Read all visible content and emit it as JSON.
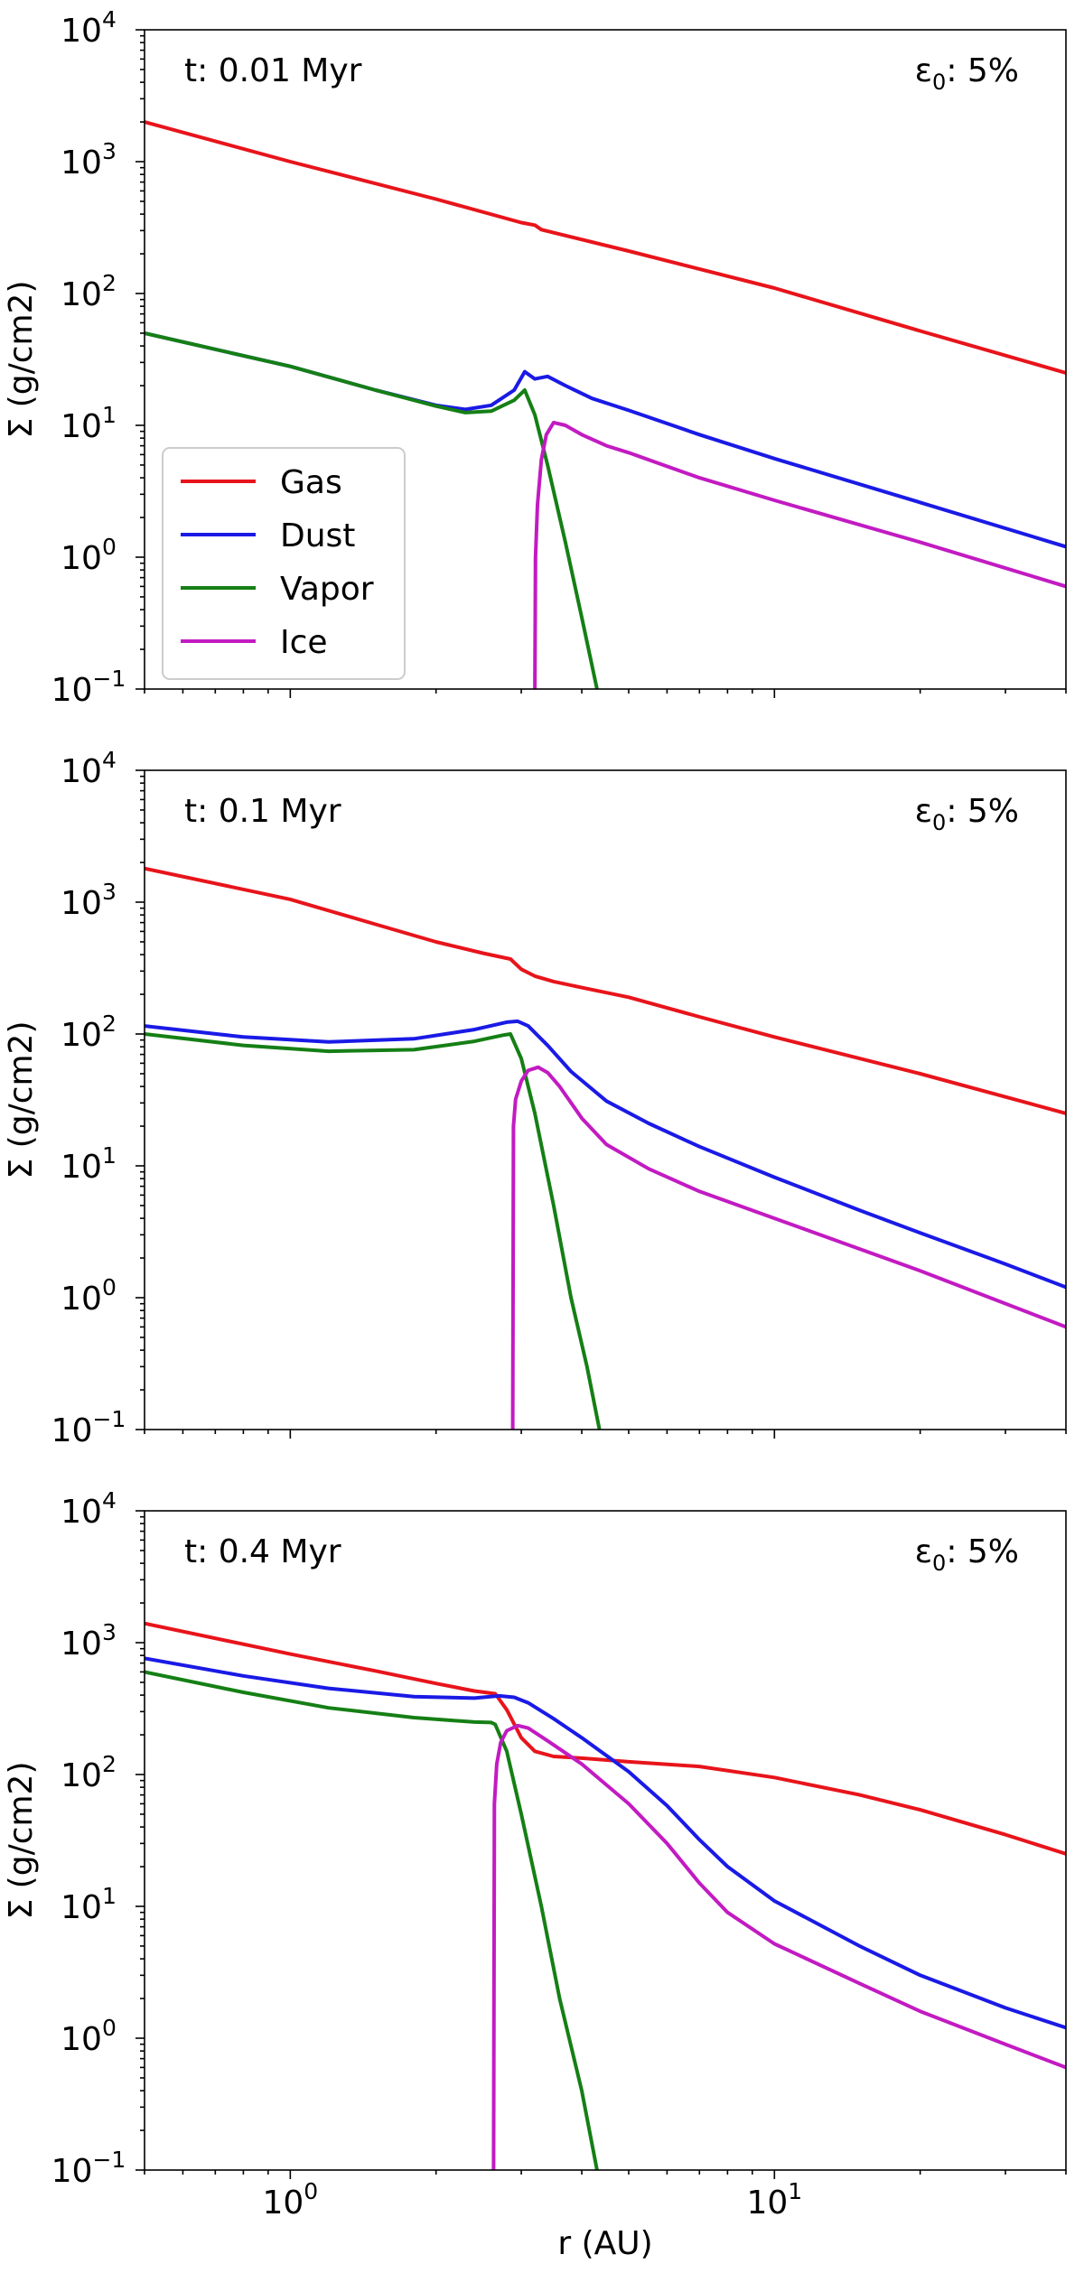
{
  "figure": {
    "xlabel": "r (AU)",
    "ylabel": "Σ (g/cm2)"
  },
  "legend": {
    "entries": [
      {
        "label": "Gas",
        "color": "#e8141b"
      },
      {
        "label": "Dust",
        "color": "#1a1ae6"
      },
      {
        "label": "Vapor",
        "color": "#157f15"
      },
      {
        "label": "Ice",
        "color": "#c21bc2"
      }
    ]
  },
  "chart_data": [
    {
      "type": "line",
      "title": "t: 0.01 Myr",
      "annotation": "ε0: 5%",
      "xscale": "log",
      "yscale": "log",
      "xlim": [
        0.5,
        40
      ],
      "ylim": [
        0.1,
        10000
      ],
      "xticks": [
        "10^0",
        "10^1"
      ],
      "yticks": [
        "10^-1",
        "10^0",
        "10^1",
        "10^2",
        "10^3",
        "10^4"
      ],
      "ylabel": "Σ (g/cm2)",
      "xlabel": "",
      "legend_location": "center-left",
      "series": [
        {
          "name": "Gas",
          "color": "#e8141b",
          "x": [
            0.5,
            1,
            2,
            3,
            3.2,
            3.3,
            5,
            10,
            20,
            40
          ],
          "y": [
            2000,
            1000,
            520,
            345,
            330,
            305,
            210,
            110,
            52,
            25
          ]
        },
        {
          "name": "Dust",
          "color": "#1a1ae6",
          "x": [
            0.5,
            1,
            1.5,
            2,
            2.3,
            2.6,
            2.9,
            3.0,
            3.05,
            3.2,
            3.4,
            3.7,
            4.2,
            5,
            7,
            10,
            20,
            40
          ],
          "y": [
            50,
            28,
            18.5,
            14.2,
            13.2,
            14.2,
            18.5,
            23,
            25.5,
            22.5,
            23.5,
            20,
            16,
            13,
            8.5,
            5.6,
            2.6,
            1.2
          ]
        },
        {
          "name": "Vapor",
          "color": "#157f15",
          "x": [
            0.5,
            1,
            1.5,
            2,
            2.3,
            2.6,
            2.9,
            3.05,
            3.2,
            3.4,
            3.7,
            4.0,
            4.3
          ],
          "y": [
            50,
            28,
            18.5,
            14,
            12.5,
            12.8,
            15.5,
            18.5,
            12,
            5,
            1.3,
            0.35,
            0.1
          ]
        },
        {
          "name": "Ice",
          "color": "#c21bc2",
          "x": [
            3.2,
            3.21,
            3.24,
            3.3,
            3.38,
            3.5,
            3.7,
            4.0,
            4.5,
            5,
            7,
            10,
            20,
            40
          ],
          "y": [
            0.1,
            1,
            2.5,
            5.5,
            8.5,
            10.5,
            10,
            8.5,
            7,
            6.2,
            4,
            2.7,
            1.3,
            0.6
          ]
        }
      ]
    },
    {
      "type": "line",
      "title": "t: 0.1 Myr",
      "annotation": "ε0: 5%",
      "xscale": "log",
      "yscale": "log",
      "xlim": [
        0.5,
        40
      ],
      "ylim": [
        0.1,
        10000
      ],
      "xticks": [
        "10^0",
        "10^1"
      ],
      "yticks": [
        "10^-1",
        "10^0",
        "10^1",
        "10^2",
        "10^3",
        "10^4"
      ],
      "ylabel": "Σ (g/cm2)",
      "xlabel": "",
      "series": [
        {
          "name": "Gas",
          "color": "#e8141b",
          "x": [
            0.5,
            1,
            1.5,
            2,
            2.5,
            2.85,
            3.0,
            3.2,
            3.5,
            4,
            5,
            7,
            10,
            20,
            40
          ],
          "y": [
            1800,
            1050,
            680,
            500,
            410,
            370,
            310,
            275,
            250,
            225,
            190,
            135,
            95,
            50,
            25
          ]
        },
        {
          "name": "Dust",
          "color": "#1a1ae6",
          "x": [
            0.5,
            0.8,
            1.2,
            1.8,
            2.4,
            2.8,
            2.95,
            3.1,
            3.4,
            3.8,
            4.5,
            5.5,
            7,
            10,
            15,
            20,
            30,
            40
          ],
          "y": [
            115,
            95,
            87,
            92,
            108,
            123,
            125,
            115,
            82,
            52,
            31,
            21,
            14,
            8.2,
            4.6,
            3.1,
            1.8,
            1.2
          ]
        },
        {
          "name": "Vapor",
          "color": "#157f15",
          "x": [
            0.5,
            0.8,
            1.2,
            1.8,
            2.4,
            2.75,
            2.85,
            3.0,
            3.2,
            3.5,
            3.8,
            4.1,
            4.35
          ],
          "y": [
            100,
            82,
            74,
            76,
            88,
            98,
            100,
            65,
            25,
            5,
            1.0,
            0.3,
            0.1
          ]
        },
        {
          "name": "Ice",
          "color": "#c21bc2",
          "x": [
            2.88,
            2.89,
            2.92,
            3.0,
            3.1,
            3.25,
            3.4,
            3.6,
            4,
            4.5,
            5.5,
            7,
            10,
            20,
            40
          ],
          "y": [
            0.1,
            20,
            32,
            44,
            53,
            56,
            51,
            40,
            23,
            14.5,
            9.5,
            6.4,
            4.0,
            1.6,
            0.6
          ]
        }
      ]
    },
    {
      "type": "line",
      "title": "t: 0.4 Myr",
      "annotation": "ε0: 5%",
      "xscale": "log",
      "yscale": "log",
      "xlim": [
        0.5,
        40
      ],
      "ylim": [
        0.1,
        10000
      ],
      "xticks": [
        "10^0",
        "10^1"
      ],
      "yticks": [
        "10^-1",
        "10^0",
        "10^1",
        "10^2",
        "10^3",
        "10^4"
      ],
      "ylabel": "Σ (g/cm2)",
      "xlabel": "r (AU)",
      "series": [
        {
          "name": "Gas",
          "color": "#e8141b",
          "x": [
            0.5,
            1,
            1.5,
            2,
            2.4,
            2.65,
            2.8,
            3.0,
            3.2,
            3.5,
            4,
            5,
            7,
            10,
            15,
            20,
            30,
            40
          ],
          "y": [
            1400,
            820,
            610,
            490,
            430,
            410,
            310,
            190,
            150,
            137,
            133,
            125,
            115,
            95,
            70,
            54,
            35,
            25
          ]
        },
        {
          "name": "Dust",
          "color": "#1a1ae6",
          "x": [
            0.5,
            0.8,
            1.2,
            1.8,
            2.4,
            2.7,
            2.9,
            3.1,
            3.5,
            4,
            5,
            6,
            7,
            8,
            10,
            15,
            20,
            30,
            40
          ],
          "y": [
            760,
            560,
            450,
            390,
            380,
            395,
            385,
            350,
            265,
            190,
            105,
            58,
            32,
            20,
            11,
            5.0,
            3.0,
            1.7,
            1.2
          ]
        },
        {
          "name": "Vapor",
          "color": "#157f15",
          "x": [
            0.5,
            0.8,
            1.2,
            1.8,
            2.4,
            2.6,
            2.65,
            2.8,
            3.0,
            3.3,
            3.6,
            4.0,
            4.3
          ],
          "y": [
            600,
            420,
            320,
            270,
            250,
            248,
            240,
            150,
            50,
            10,
            2,
            0.4,
            0.1
          ]
        },
        {
          "name": "Ice",
          "color": "#c21bc2",
          "x": [
            2.63,
            2.64,
            2.67,
            2.72,
            2.8,
            2.95,
            3.1,
            3.4,
            4,
            5,
            6,
            7,
            8,
            10,
            15,
            20,
            30,
            40
          ],
          "y": [
            0.1,
            60,
            120,
            175,
            215,
            235,
            225,
            180,
            120,
            60,
            30,
            15,
            9,
            5.2,
            2.6,
            1.6,
            0.9,
            0.6
          ]
        }
      ]
    }
  ]
}
